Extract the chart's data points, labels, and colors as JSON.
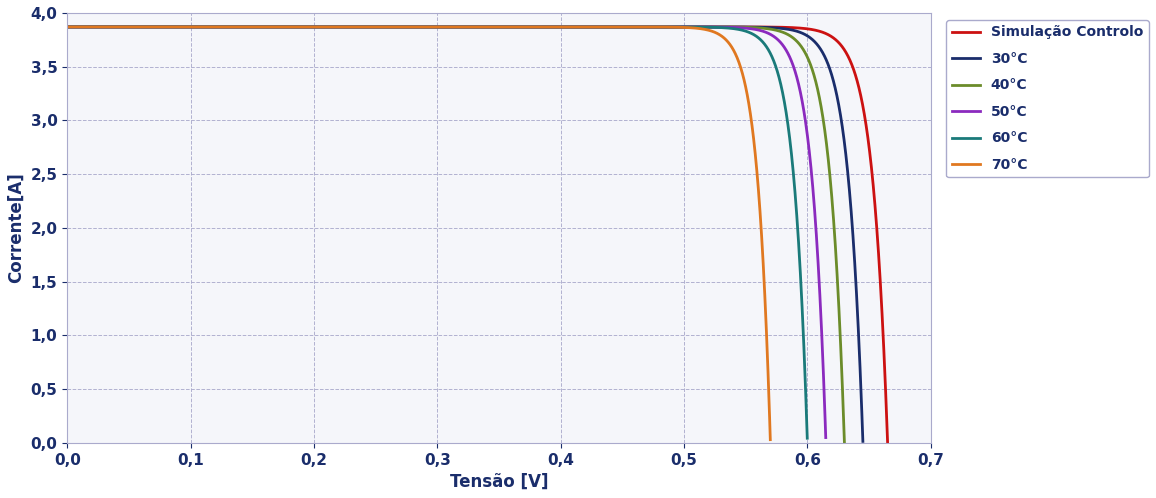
{
  "title": "",
  "xlabel": "Tensão [V]",
  "ylabel": "Corrente[A]",
  "xlim": [
    0.0,
    0.7
  ],
  "ylim": [
    0.0,
    4.0
  ],
  "xticks": [
    0.0,
    0.1,
    0.2,
    0.3,
    0.4,
    0.5,
    0.6,
    0.7
  ],
  "yticks": [
    0.0,
    0.5,
    1.0,
    1.5,
    2.0,
    2.5,
    3.0,
    3.5,
    4.0
  ],
  "background_color": "#FFFFFF",
  "plot_bg_color": "#F5F6FA",
  "grid_color": "#AAAACC",
  "curves": [
    {
      "label": "Simulação Controlo",
      "color": "#CC1111",
      "Isc": 3.87,
      "Voc": 0.665,
      "n": 55
    },
    {
      "label": "30°C",
      "color": "#1A2D6B",
      "Isc": 3.87,
      "Voc": 0.645,
      "n": 55
    },
    {
      "label": "40°C",
      "color": "#6B8C2A",
      "Isc": 3.87,
      "Voc": 0.63,
      "n": 55
    },
    {
      "label": "50°C",
      "color": "#8B2ABE",
      "Isc": 3.87,
      "Voc": 0.615,
      "n": 55
    },
    {
      "label": "60°C",
      "color": "#1A7A7A",
      "Isc": 3.87,
      "Voc": 0.6,
      "n": 55
    },
    {
      "label": "70°C",
      "color": "#E07820",
      "Isc": 3.87,
      "Voc": 0.57,
      "n": 55
    }
  ],
  "legend_fontsize": 10,
  "axis_label_fontsize": 12,
  "tick_fontsize": 11,
  "line_width": 2.0
}
